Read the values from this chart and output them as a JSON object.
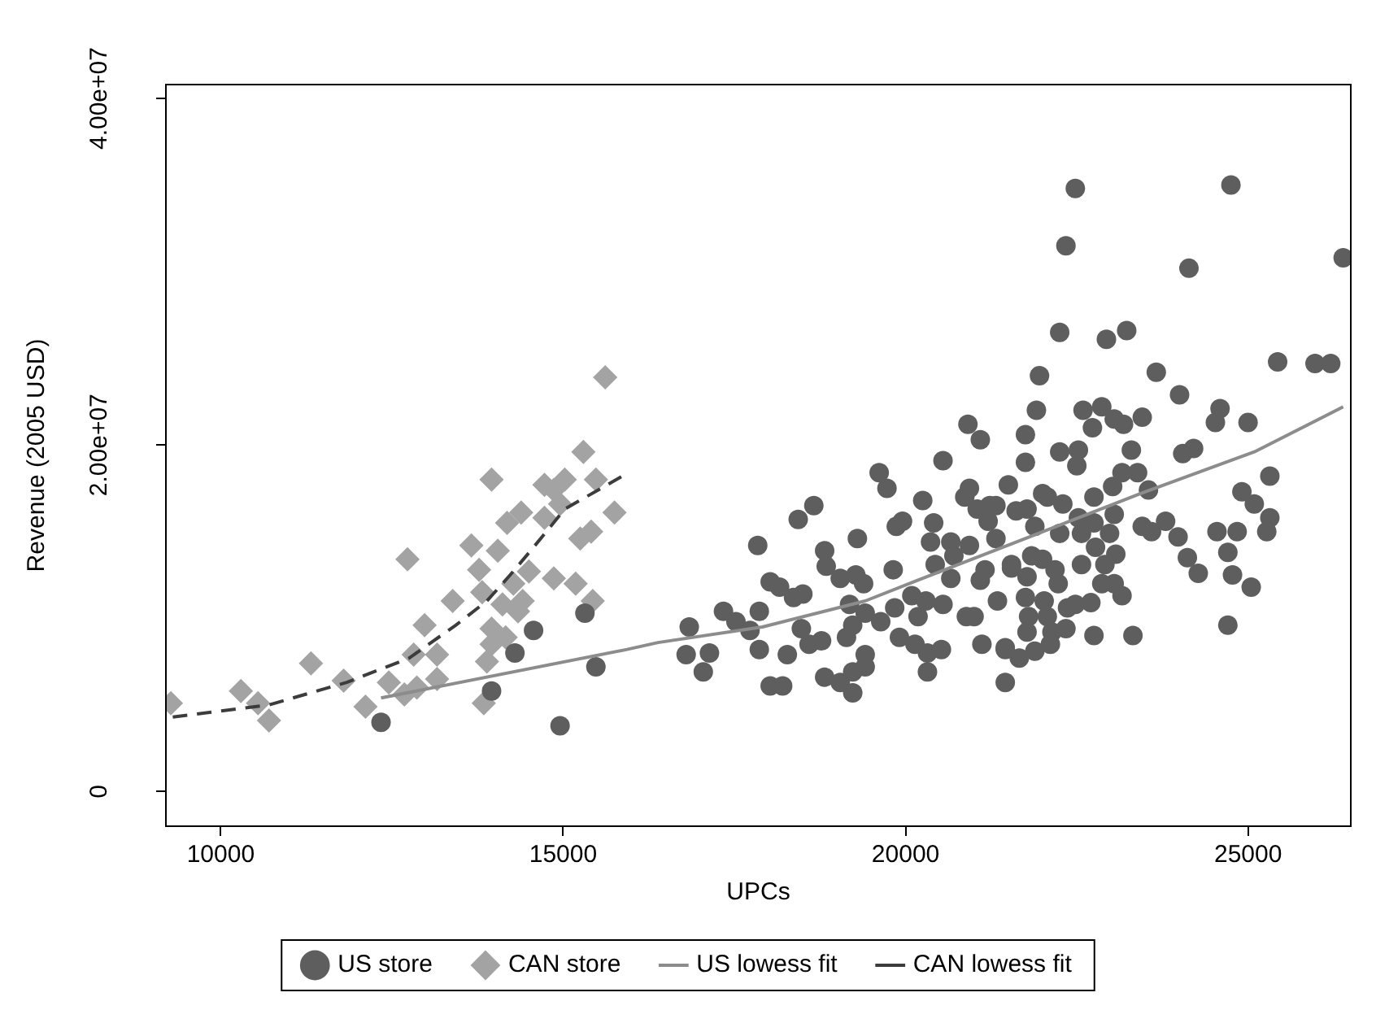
{
  "chart_data": {
    "type": "scatter",
    "xlabel": "UPCs",
    "ylabel": "Revenue (2005 USD)",
    "xlim": [
      9200,
      26500
    ],
    "xticks": [
      10000,
      15000,
      20000,
      25000
    ],
    "ylim": [
      -2000000,
      40800000
    ],
    "yticks": [
      {
        "value": 0,
        "label": "0"
      },
      {
        "value": 20000000,
        "label": "2.00e+07"
      },
      {
        "value": 40000000,
        "label": "4.00e+07"
      }
    ],
    "grid": false,
    "legend": "bottom",
    "series": [
      {
        "name": "US store",
        "marker": "circle",
        "color": "#5e5e5e",
        "x": [
          12341,
          13955,
          14296,
          14568,
          14955,
          15318,
          15478,
          16796,
          16841,
          17136,
          17046,
          17341,
          17523,
          17728,
          17841,
          17864,
          17864,
          18023,
          18160,
          18023,
          18205,
          18273,
          18364,
          18432,
          18660,
          18500,
          18478,
          18591,
          18773,
          18818,
          19046,
          19228,
          18818,
          18841,
          19046,
          19296,
          19273,
          19387,
          19182,
          19137,
          19228,
          19410,
          19410,
          19410,
          19228,
          19614,
          19728,
          19637,
          19819,
          19841,
          19864,
          19955,
          19910,
          20091,
          20182,
          20250,
          20137,
          20319,
          20319,
          20410,
          20364,
          20432,
          20296,
          20523,
          20546,
          20546,
          20660,
          20705,
          20660,
          20887,
          20932,
          20910,
          21091,
          20864,
          20932,
          21046,
          21091,
          21114,
          21319,
          21205,
          21319,
          21160,
          21341,
          21455,
          21455,
          21500,
          21546,
          22478,
          24750,
          22341,
          24137,
          26389,
          22250,
          22932,
          23228,
          25432,
          25978,
          26207,
          21955,
          23660,
          24000,
          21910,
          22591,
          22864,
          23046,
          23182,
          22728,
          23455,
          24591,
          24523,
          25000,
          21750,
          21750,
          22250,
          22523,
          22500,
          23296,
          24046,
          24205,
          25318,
          24910,
          25091,
          25318,
          25273,
          24546,
          24841,
          24705,
          24773,
          25046,
          24705,
          23796,
          23978,
          24114,
          24273,
          23455,
          23591,
          23546,
          23387,
          23160,
          23023,
          22750,
          23046,
          22978,
          22773,
          23069,
          22910,
          22864,
          23046,
          23160,
          22705,
          22478,
          22364,
          22568,
          22568,
          22750,
          22523,
          22296,
          22069,
          22000,
          22250,
          22182,
          22000,
          22228,
          21841,
          21887,
          21773,
          21614,
          21546,
          21773,
          21750,
          22023,
          22069,
          21796,
          22341,
          22137,
          21773,
          22750,
          23319,
          21455,
          21660,
          21887,
          22114,
          21228,
          21000
        ],
        "values": [
          4000000,
          5800000,
          8000000,
          9300000,
          3800000,
          10300000,
          7200000,
          7900000,
          9500000,
          8000000,
          6900000,
          10400000,
          9800000,
          9300000,
          14200000,
          10400000,
          8200000,
          12100000,
          11800000,
          6100000,
          6100000,
          7900000,
          11200000,
          15700000,
          16500000,
          11400000,
          9400000,
          8500000,
          8700000,
          6600000,
          6300000,
          5700000,
          13900000,
          13000000,
          12300000,
          14600000,
          12500000,
          12000000,
          10800000,
          8900000,
          9600000,
          10300000,
          7900000,
          7200000,
          6900000,
          18400000,
          17500000,
          9800000,
          12800000,
          10600000,
          15300000,
          15600000,
          8900000,
          11300000,
          10100000,
          16800000,
          8500000,
          8000000,
          6900000,
          15500000,
          14400000,
          13100000,
          11000000,
          8200000,
          10800000,
          19100000,
          14400000,
          13600000,
          12300000,
          10100000,
          14200000,
          21200000,
          20300000,
          17000000,
          17500000,
          16300000,
          12200000,
          8500000,
          16500000,
          15600000,
          14600000,
          12800000,
          11000000,
          8200000,
          6300000,
          17700000,
          13100000,
          34800000,
          35000000,
          31500000,
          30200000,
          30800000,
          26500000,
          26100000,
          26600000,
          24800000,
          24700000,
          24700000,
          24000000,
          24200000,
          22900000,
          22000000,
          22000000,
          22200000,
          21500000,
          21200000,
          21000000,
          21600000,
          22100000,
          21300000,
          21300000,
          20600000,
          19000000,
          19600000,
          19700000,
          18800000,
          19700000,
          19500000,
          19800000,
          18200000,
          17300000,
          16600000,
          15800000,
          15000000,
          15000000,
          15000000,
          13800000,
          12500000,
          11800000,
          9600000,
          15600000,
          14700000,
          13500000,
          12600000,
          15300000,
          15000000,
          17400000,
          18400000,
          18400000,
          17600000,
          17000000,
          16000000,
          14900000,
          14100000,
          13700000,
          13100000,
          12000000,
          12000000,
          11300000,
          10900000,
          10800000,
          10600000,
          13100000,
          14900000,
          15500000,
          15800000,
          16600000,
          17000000,
          17200000,
          14900000,
          12800000,
          13400000,
          12000000,
          13600000,
          15300000,
          16300000,
          16200000,
          12900000,
          12400000,
          11200000,
          11000000,
          10100000,
          10100000,
          9400000,
          9200000,
          9200000,
          9000000,
          9000000,
          8300000,
          7700000,
          8100000,
          8500000,
          16500000,
          10100000
        ]
      },
      {
        "name": "CAN store",
        "marker": "diamond",
        "color": "#a3a3a3",
        "x": [
          9273,
          10295,
          10545,
          10705,
          11318,
          11795,
          12114,
          12455,
          12682,
          12864,
          12818,
          13159,
          13159,
          12977,
          12727,
          13387,
          13660,
          13773,
          13818,
          13841,
          13955,
          13887,
          13955,
          14046,
          14182,
          14387,
          14114,
          14273,
          14341,
          14409,
          14160,
          13955,
          14500,
          14727,
          14727,
          14864,
          15023,
          14955,
          14864,
          15182,
          15250,
          15409,
          15296,
          15478,
          15750,
          15614,
          15432
        ],
        "values": [
          5100000,
          5800000,
          5100000,
          4100000,
          7400000,
          6400000,
          4900000,
          6300000,
          5600000,
          6000000,
          7900000,
          7900000,
          6500000,
          9600000,
          13400000,
          11000000,
          14200000,
          12800000,
          11500000,
          5100000,
          18000000,
          7500000,
          9400000,
          13900000,
          15500000,
          16100000,
          10800000,
          12000000,
          10400000,
          11000000,
          8900000,
          8500000,
          12700000,
          15800000,
          17700000,
          17400000,
          18000000,
          16600000,
          12300000,
          12000000,
          14600000,
          15000000,
          19600000,
          18000000,
          16100000,
          23900000,
          11000000
        ]
      },
      {
        "name": "US lowess fit",
        "type": "line",
        "marker": "none",
        "line_style": "solid",
        "color": "#8c8c8c",
        "x": [
          12341,
          15932,
          16387,
          17909,
          19410,
          20182,
          21614,
          23432,
          25091,
          26389
        ],
        "values": [
          5400000,
          8200000,
          8600000,
          9500000,
          11000000,
          12200000,
          14400000,
          17200000,
          19600000,
          22200000
        ]
      },
      {
        "name": "CAN lowess fit",
        "type": "line",
        "marker": "none",
        "line_style": "dashed",
        "color": "#3c3c3c",
        "x": [
          9300,
          10705,
          11841,
          12750,
          13432,
          13887,
          14227,
          14568,
          15023,
          15864
        ],
        "values": [
          4300000,
          5000000,
          6300000,
          7700000,
          9600000,
          11000000,
          12500000,
          14100000,
          16300000,
          18200000
        ]
      }
    ]
  }
}
